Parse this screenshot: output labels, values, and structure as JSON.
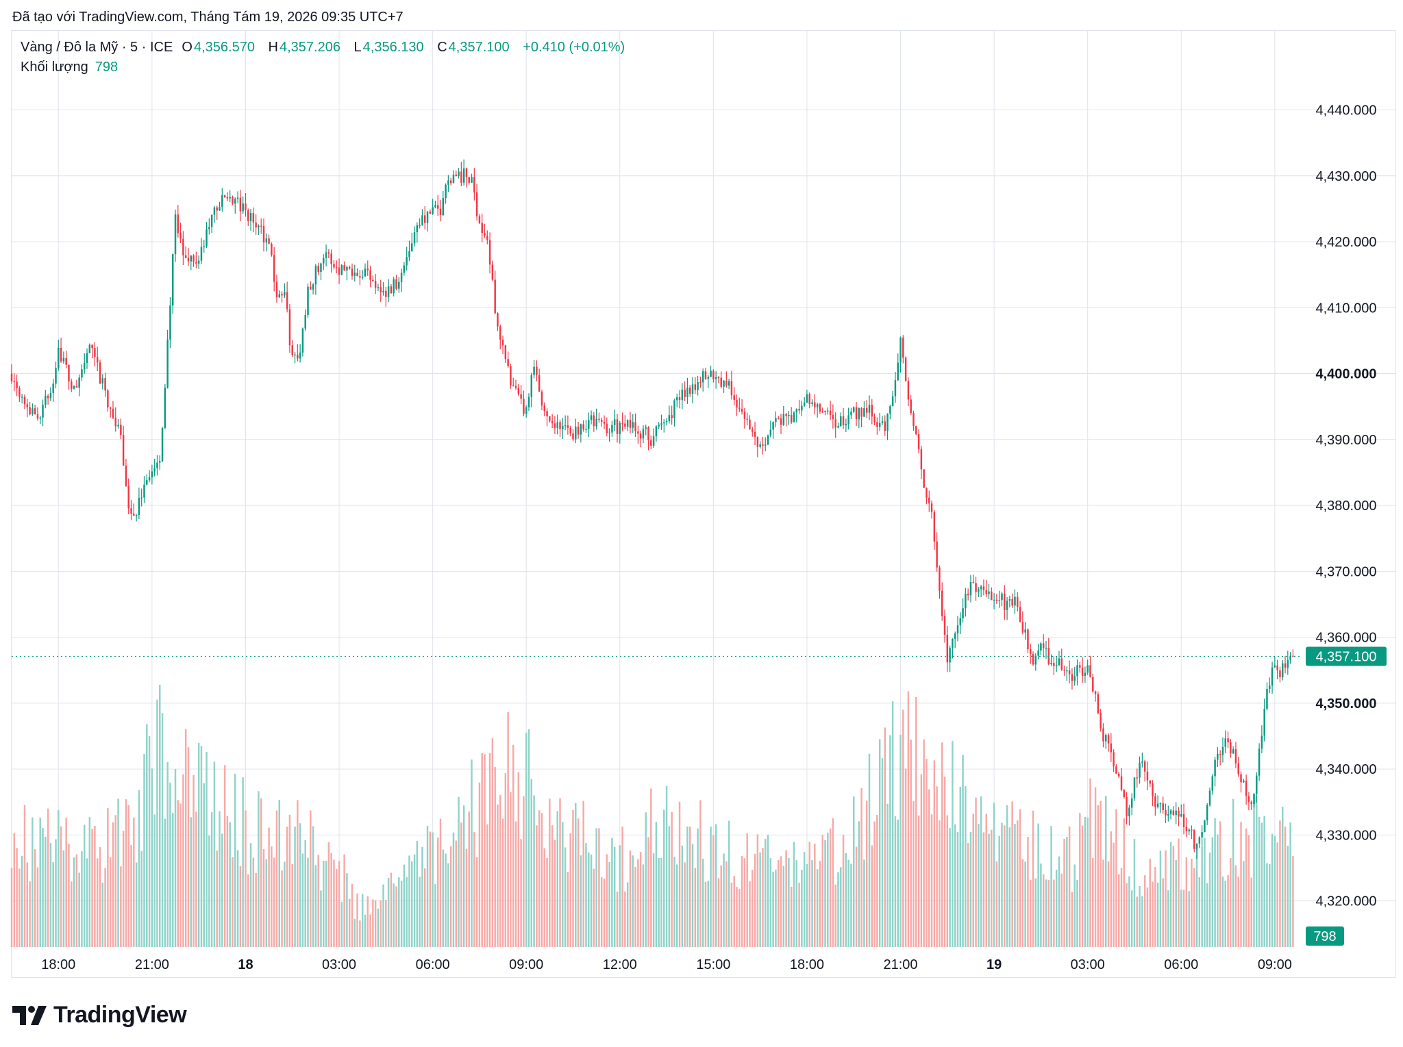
{
  "header": {
    "created_text": "Đã tạo với TradingView.com, Tháng Tám 19, 2026 09:35 UTC+7"
  },
  "legend": {
    "symbol": "Vàng / Đô la Mỹ · 5 · ICE",
    "o_label": "O",
    "o_value": "4,356.570",
    "h_label": "H",
    "h_value": "4,357.206",
    "l_label": "L",
    "l_value": "4,356.130",
    "c_label": "C",
    "c_value": "4,357.100",
    "change": "+0.410 (+0.01%)",
    "volume_label": "Khối lượng",
    "volume_value": "798"
  },
  "footer": {
    "brand": "TradingView"
  },
  "colors": {
    "up": "#089981",
    "down": "#f23645",
    "up_volume": "#8fd3c9",
    "down_volume": "#f7a9a7",
    "grid": "#e0e3eb",
    "text": "#131722"
  },
  "chart_data": {
    "type": "candlestick",
    "ylim": [
      4313,
      4452
    ],
    "y_ticks": [
      {
        "value": 4440,
        "label": "4,440.000",
        "bold": false
      },
      {
        "value": 4430,
        "label": "4,430.000",
        "bold": false
      },
      {
        "value": 4420,
        "label": "4,420.000",
        "bold": false
      },
      {
        "value": 4410,
        "label": "4,410.000",
        "bold": false
      },
      {
        "value": 4400,
        "label": "4,400.000",
        "bold": true
      },
      {
        "value": 4390,
        "label": "4,390.000",
        "bold": false
      },
      {
        "value": 4380,
        "label": "4,380.000",
        "bold": false
      },
      {
        "value": 4370,
        "label": "4,370.000",
        "bold": false
      },
      {
        "value": 4360,
        "label": "4,360.000",
        "bold": false
      },
      {
        "value": 4350,
        "label": "4,350.000",
        "bold": true
      },
      {
        "value": 4340,
        "label": "4,340.000",
        "bold": false
      },
      {
        "value": 4330,
        "label": "4,330.000",
        "bold": false
      },
      {
        "value": 4320,
        "label": "4,320.000",
        "bold": false
      }
    ],
    "x_ticks": [
      {
        "t": "17 18:00",
        "label": "18:00",
        "bold": false
      },
      {
        "t": "17 21:00",
        "label": "21:00",
        "bold": false
      },
      {
        "t": "18 00:00",
        "label": "18",
        "bold": true
      },
      {
        "t": "18 03:00",
        "label": "03:00",
        "bold": false
      },
      {
        "t": "18 06:00",
        "label": "06:00",
        "bold": false
      },
      {
        "t": "18 09:00",
        "label": "09:00",
        "bold": false
      },
      {
        "t": "18 12:00",
        "label": "12:00",
        "bold": false
      },
      {
        "t": "18 15:00",
        "label": "15:00",
        "bold": false
      },
      {
        "t": "18 18:00",
        "label": "18:00",
        "bold": false
      },
      {
        "t": "18 21:00",
        "label": "21:00",
        "bold": false
      },
      {
        "t": "19 00:00",
        "label": "19",
        "bold": true
      },
      {
        "t": "19 03:00",
        "label": "03:00",
        "bold": false
      },
      {
        "t": "19 06:00",
        "label": "06:00",
        "bold": false
      },
      {
        "t": "19 09:00",
        "label": "09:00",
        "bold": false
      }
    ],
    "x_range": [
      "17 16:30",
      "19 09:45"
    ],
    "last_price": {
      "value": 4357.1,
      "label": "4,357.100"
    },
    "last_volume": {
      "value": 798,
      "label": "798"
    },
    "volume_max": 2300,
    "price_path": [
      [
        "17 16:30",
        4400
      ],
      [
        "17 17:15",
        4393
      ],
      [
        "17 17:45",
        4397
      ],
      [
        "17 18:00",
        4404
      ],
      [
        "17 18:30",
        4397
      ],
      [
        "17 19:00",
        4404
      ],
      [
        "17 19:30",
        4397
      ],
      [
        "17 20:00",
        4390
      ],
      [
        "17 20:15",
        4380
      ],
      [
        "17 20:30",
        4378
      ],
      [
        "17 20:45",
        4384
      ],
      [
        "17 21:15",
        4386
      ],
      [
        "17 21:30",
        4405
      ],
      [
        "17 21:45",
        4423
      ],
      [
        "17 22:00",
        4418
      ],
      [
        "17 22:30",
        4417
      ],
      [
        "17 23:00",
        4425
      ],
      [
        "17 23:30",
        4427
      ],
      [
        "18 00:15",
        4423
      ],
      [
        "18 00:45",
        4420
      ],
      [
        "18 01:00",
        4412
      ],
      [
        "18 01:15",
        4412
      ],
      [
        "18 01:30",
        4402
      ],
      [
        "18 01:45",
        4403
      ],
      [
        "18 02:00",
        4413
      ],
      [
        "18 02:30",
        4418
      ],
      [
        "18 03:00",
        4416
      ],
      [
        "18 03:30",
        4416
      ],
      [
        "18 04:00",
        4415
      ],
      [
        "18 04:30",
        4412
      ],
      [
        "18 05:00",
        4415
      ],
      [
        "18 05:30",
        4423
      ],
      [
        "18 06:15",
        4425
      ],
      [
        "18 06:30",
        4430
      ],
      [
        "18 07:00",
        4430
      ],
      [
        "18 07:15",
        4429
      ],
      [
        "18 07:30",
        4423
      ],
      [
        "18 07:45",
        4420
      ],
      [
        "18 08:00",
        4410
      ],
      [
        "18 08:15",
        4404
      ],
      [
        "18 08:30",
        4398
      ],
      [
        "18 09:00",
        4394
      ],
      [
        "18 09:15",
        4401
      ],
      [
        "18 09:30",
        4395
      ],
      [
        "18 10:00",
        4392
      ],
      [
        "18 10:30",
        4391
      ],
      [
        "18 11:00",
        4393
      ],
      [
        "18 11:30",
        4392
      ],
      [
        "18 12:00",
        4392
      ],
      [
        "18 12:30",
        4392
      ],
      [
        "18 13:00",
        4390
      ],
      [
        "18 13:30",
        4393
      ],
      [
        "18 14:00",
        4397
      ],
      [
        "18 14:30",
        4399
      ],
      [
        "18 15:00",
        4400
      ],
      [
        "18 15:30",
        4398
      ],
      [
        "18 16:00",
        4393
      ],
      [
        "18 16:30",
        4389
      ],
      [
        "18 17:00",
        4393
      ],
      [
        "18 17:30",
        4393
      ],
      [
        "18 18:00",
        4396
      ],
      [
        "18 18:30",
        4394
      ],
      [
        "18 19:00",
        4392
      ],
      [
        "18 19:30",
        4394
      ],
      [
        "18 20:00",
        4395
      ],
      [
        "18 20:30",
        4391
      ],
      [
        "18 20:50",
        4400
      ],
      [
        "18 21:00",
        4405
      ],
      [
        "18 21:15",
        4397
      ],
      [
        "18 21:30",
        4390
      ],
      [
        "18 21:45",
        4383
      ],
      [
        "18 22:00",
        4378
      ],
      [
        "18 22:15",
        4366
      ],
      [
        "18 22:30",
        4357
      ],
      [
        "18 22:45",
        4360
      ],
      [
        "18 23:00",
        4365
      ],
      [
        "18 23:15",
        4368
      ],
      [
        "18 23:30",
        4367
      ],
      [
        "19 00:00",
        4366
      ],
      [
        "19 00:30",
        4365
      ],
      [
        "19 00:45",
        4365
      ],
      [
        "19 01:00",
        4360
      ],
      [
        "19 01:15",
        4357
      ],
      [
        "19 01:30",
        4358
      ],
      [
        "19 02:00",
        4356
      ],
      [
        "19 02:30",
        4354
      ],
      [
        "19 03:00",
        4356
      ],
      [
        "19 03:15",
        4351
      ],
      [
        "19 03:30",
        4345
      ],
      [
        "19 04:00",
        4339
      ],
      [
        "19 04:15",
        4333
      ],
      [
        "19 04:30",
        4338
      ],
      [
        "19 04:45",
        4341
      ],
      [
        "19 05:00",
        4338
      ],
      [
        "19 05:15",
        4334
      ],
      [
        "19 05:30",
        4333
      ],
      [
        "19 06:00",
        4333
      ],
      [
        "19 06:30",
        4328
      ],
      [
        "19 06:45",
        4333
      ],
      [
        "19 07:00",
        4340
      ],
      [
        "19 07:15",
        4343
      ],
      [
        "19 07:30",
        4344
      ],
      [
        "19 07:45",
        4341
      ],
      [
        "19 08:00",
        4338
      ],
      [
        "19 08:15",
        4335
      ],
      [
        "19 08:30",
        4342
      ],
      [
        "19 08:45",
        4353
      ],
      [
        "19 09:00",
        4355
      ],
      [
        "19 09:15",
        4355
      ],
      [
        "19 09:30",
        4358
      ],
      [
        "19 09:35",
        4357.1
      ]
    ],
    "volume_path": [
      [
        "17 16:30",
        900
      ],
      [
        "17 19:30",
        850
      ],
      [
        "17 20:30",
        1200
      ],
      [
        "17 21:15",
        1700
      ],
      [
        "17 22:00",
        1500
      ],
      [
        "17 23:30",
        1100
      ],
      [
        "18 02:00",
        900
      ],
      [
        "18 03:00",
        700
      ],
      [
        "18 03:30",
        350
      ],
      [
        "18 05:00",
        550
      ],
      [
        "18 06:30",
        950
      ],
      [
        "18 08:30",
        1550
      ],
      [
        "18 10:00",
        1100
      ],
      [
        "18 12:00",
        750
      ],
      [
        "18 13:00",
        1050
      ],
      [
        "18 15:00",
        900
      ],
      [
        "18 18:00",
        700
      ],
      [
        "18 19:30",
        1000
      ],
      [
        "18 21:00",
        1800
      ],
      [
        "18 22:00",
        1700
      ],
      [
        "18 23:30",
        1000
      ],
      [
        "19 01:00",
        900
      ],
      [
        "19 02:30",
        750
      ],
      [
        "19 03:15",
        1200
      ],
      [
        "19 04:30",
        700
      ],
      [
        "19 06:30",
        700
      ],
      [
        "19 08:00",
        1000
      ],
      [
        "19 09:30",
        950
      ]
    ]
  }
}
